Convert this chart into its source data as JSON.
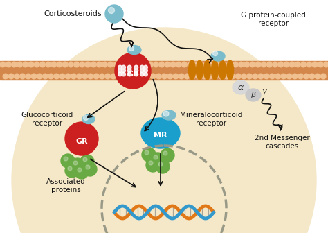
{
  "bg_outer": "#ffffff",
  "bg_cell": "#f5e8c8",
  "membrane_color": "#d4874a",
  "dot_color": "#f0c090",
  "gr_red": "#cc2020",
  "mr_blue": "#1a9fcc",
  "ligand_teal": "#7bbccc",
  "green_protein": "#6aaa44",
  "orange_helix": "#cc7700",
  "dna_orange": "#e07818",
  "dna_blue": "#3399cc",
  "text_color": "#111111",
  "arrow_color": "#111111",
  "nucleus_edge": "#999988",
  "alpha_color": "#cccccc",
  "beta_color": "#bbbbbb",
  "label_corticosteroids": "Corticosteroids",
  "label_gpcr": "G protein-coupled\nreceptor",
  "label_gr_receptor": "Glucocorticoid\nreceptor",
  "label_mr_receptor": "Mineralocorticoid\nreceptor",
  "label_assoc": "Associated\nproteins",
  "label_2nd": "2nd Messenger\ncascades",
  "label_gr": "GR",
  "label_mr": "MR",
  "label_alpha": "α",
  "label_beta": "β",
  "label_gamma": "γ",
  "figsize": [
    4.74,
    3.36
  ],
  "dpi": 100
}
